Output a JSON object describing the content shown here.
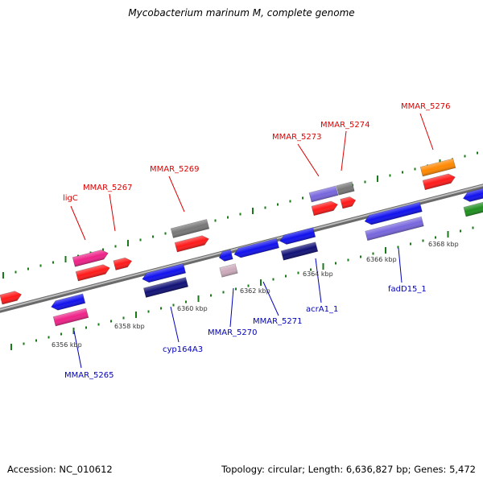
{
  "title": "Mycobacterium marinum M, complete genome",
  "footer": {
    "accession": "Accession: NC_010612",
    "summary": "Topology: circular; Length: 6,636,827 bp; Genes: 5,472"
  },
  "colors": {
    "axis": "#8f8f8f",
    "tick": "#1a7a1a",
    "top_label": "#dd0000",
    "bottom_label": "#0000bb",
    "red": "#ff1a1a",
    "magenta": "#ee2288",
    "grey": "#777777",
    "orange": "#ff8800",
    "blue": "#1111ee",
    "navy": "#111177",
    "lavender": "#7766dd",
    "green": "#1f8f1f",
    "pink_grey": "#ccaabb"
  },
  "coordinate_labels": [
    "6356 kbp",
    "6358 kbp",
    "6360 kbp",
    "6362 kbp",
    "6364 kbp",
    "6366 kbp",
    "6368 kbp"
  ],
  "gene_labels": {
    "top": [
      "ligC",
      "MMAR_5267",
      "MMAR_5269",
      "MMAR_5273",
      "MMAR_5274",
      "MMAR_5276"
    ],
    "bottom": [
      "MMAR_5265",
      "cyp164A3",
      "MMAR_5270",
      "MMAR_5271",
      "acrA1_1",
      "fadD15_1"
    ]
  }
}
